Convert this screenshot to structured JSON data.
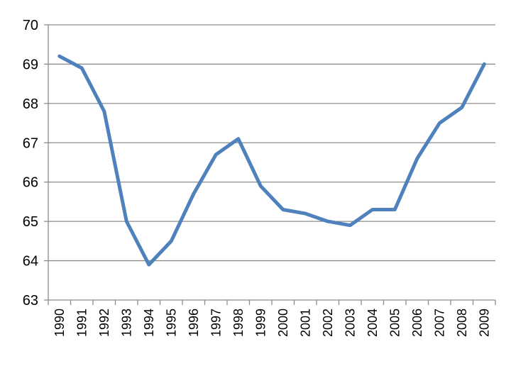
{
  "chart_data": {
    "type": "line",
    "title": "",
    "xlabel": "",
    "ylabel": "",
    "ylim": [
      63,
      70
    ],
    "yticks": [
      "63",
      "64",
      "65",
      "66",
      "67",
      "68",
      "69",
      "70"
    ],
    "grid": true,
    "legend": "none",
    "categories": [
      "1990",
      "1991",
      "1992",
      "1993",
      "1994",
      "1995",
      "1996",
      "1997",
      "1998",
      "1999",
      "2000",
      "2001",
      "2002",
      "2003",
      "2004",
      "2005",
      "2006",
      "2007",
      "2008",
      "2009"
    ],
    "series": [
      {
        "color": "#4f81bd",
        "values": [
          69.2,
          68.9,
          67.8,
          65.0,
          63.9,
          64.5,
          65.7,
          66.7,
          67.1,
          65.9,
          65.3,
          65.2,
          65.0,
          64.9,
          65.3,
          65.3,
          66.6,
          67.5,
          67.9,
          69.0
        ]
      }
    ]
  }
}
